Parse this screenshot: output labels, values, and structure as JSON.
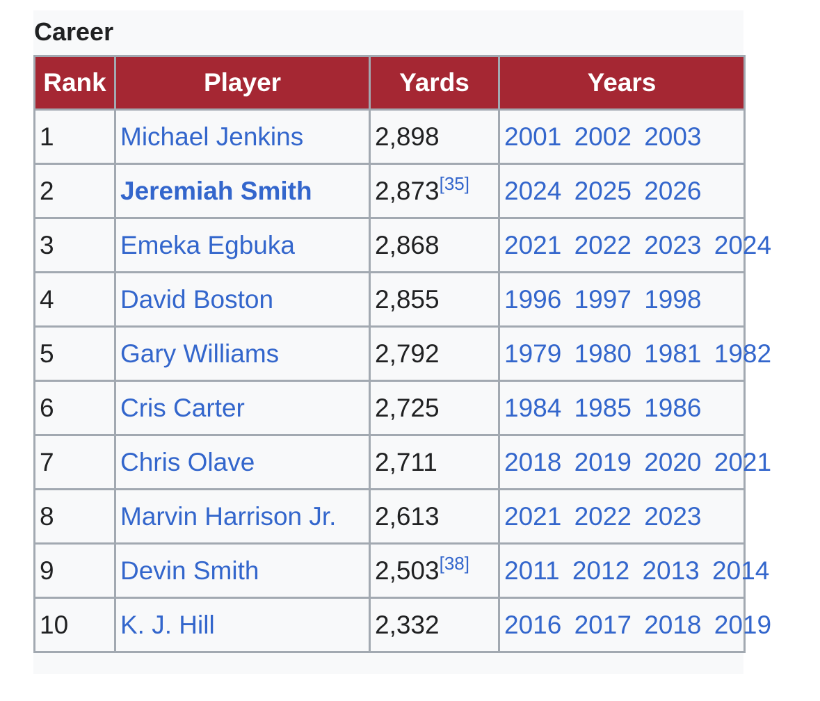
{
  "section": {
    "title": "Career"
  },
  "table": {
    "headers": {
      "rank": "Rank",
      "player": "Player",
      "yards": "Yards",
      "years": "Years"
    },
    "rows": [
      {
        "rank": "1",
        "player": "Michael Jenkins",
        "bold": false,
        "yards": "2,898",
        "ref": "",
        "years": [
          "2001",
          "2002",
          "2003"
        ]
      },
      {
        "rank": "2",
        "player": "Jeremiah Smith",
        "bold": true,
        "yards": "2,873",
        "ref": "[35]",
        "years": [
          "2024",
          "2025",
          "2026"
        ]
      },
      {
        "rank": "3",
        "player": "Emeka Egbuka",
        "bold": false,
        "yards": "2,868",
        "ref": "",
        "years": [
          "2021",
          "2022",
          "2023",
          "2024"
        ]
      },
      {
        "rank": "4",
        "player": "David Boston",
        "bold": false,
        "yards": "2,855",
        "ref": "",
        "years": [
          "1996",
          "1997",
          "1998"
        ]
      },
      {
        "rank": "5",
        "player": "Gary Williams",
        "bold": false,
        "yards": "2,792",
        "ref": "",
        "years": [
          "1979",
          "1980",
          "1981",
          "1982"
        ]
      },
      {
        "rank": "6",
        "player": "Cris Carter",
        "bold": false,
        "yards": "2,725",
        "ref": "",
        "years": [
          "1984",
          "1985",
          "1986"
        ]
      },
      {
        "rank": "7",
        "player": "Chris Olave",
        "bold": false,
        "yards": "2,711",
        "ref": "",
        "years": [
          "2018",
          "2019",
          "2020",
          "2021"
        ]
      },
      {
        "rank": "8",
        "player": "Marvin Harrison Jr.",
        "bold": false,
        "yards": "2,613",
        "ref": "",
        "years": [
          "2021",
          "2022",
          "2023"
        ]
      },
      {
        "rank": "9",
        "player": "Devin Smith",
        "bold": false,
        "yards": "2,503",
        "ref": "[38]",
        "years": [
          "2011",
          "2012",
          "2013",
          "2014"
        ]
      },
      {
        "rank": "10",
        "player": "K. J. Hill",
        "bold": false,
        "yards": "2,332",
        "ref": "",
        "years": [
          "2016",
          "2017",
          "2018",
          "2019"
        ]
      }
    ]
  },
  "colors": {
    "header_bg": "#a52733",
    "link": "#3366cc",
    "border": "#a2a9b1",
    "cell_bg": "#f8f9fa"
  }
}
